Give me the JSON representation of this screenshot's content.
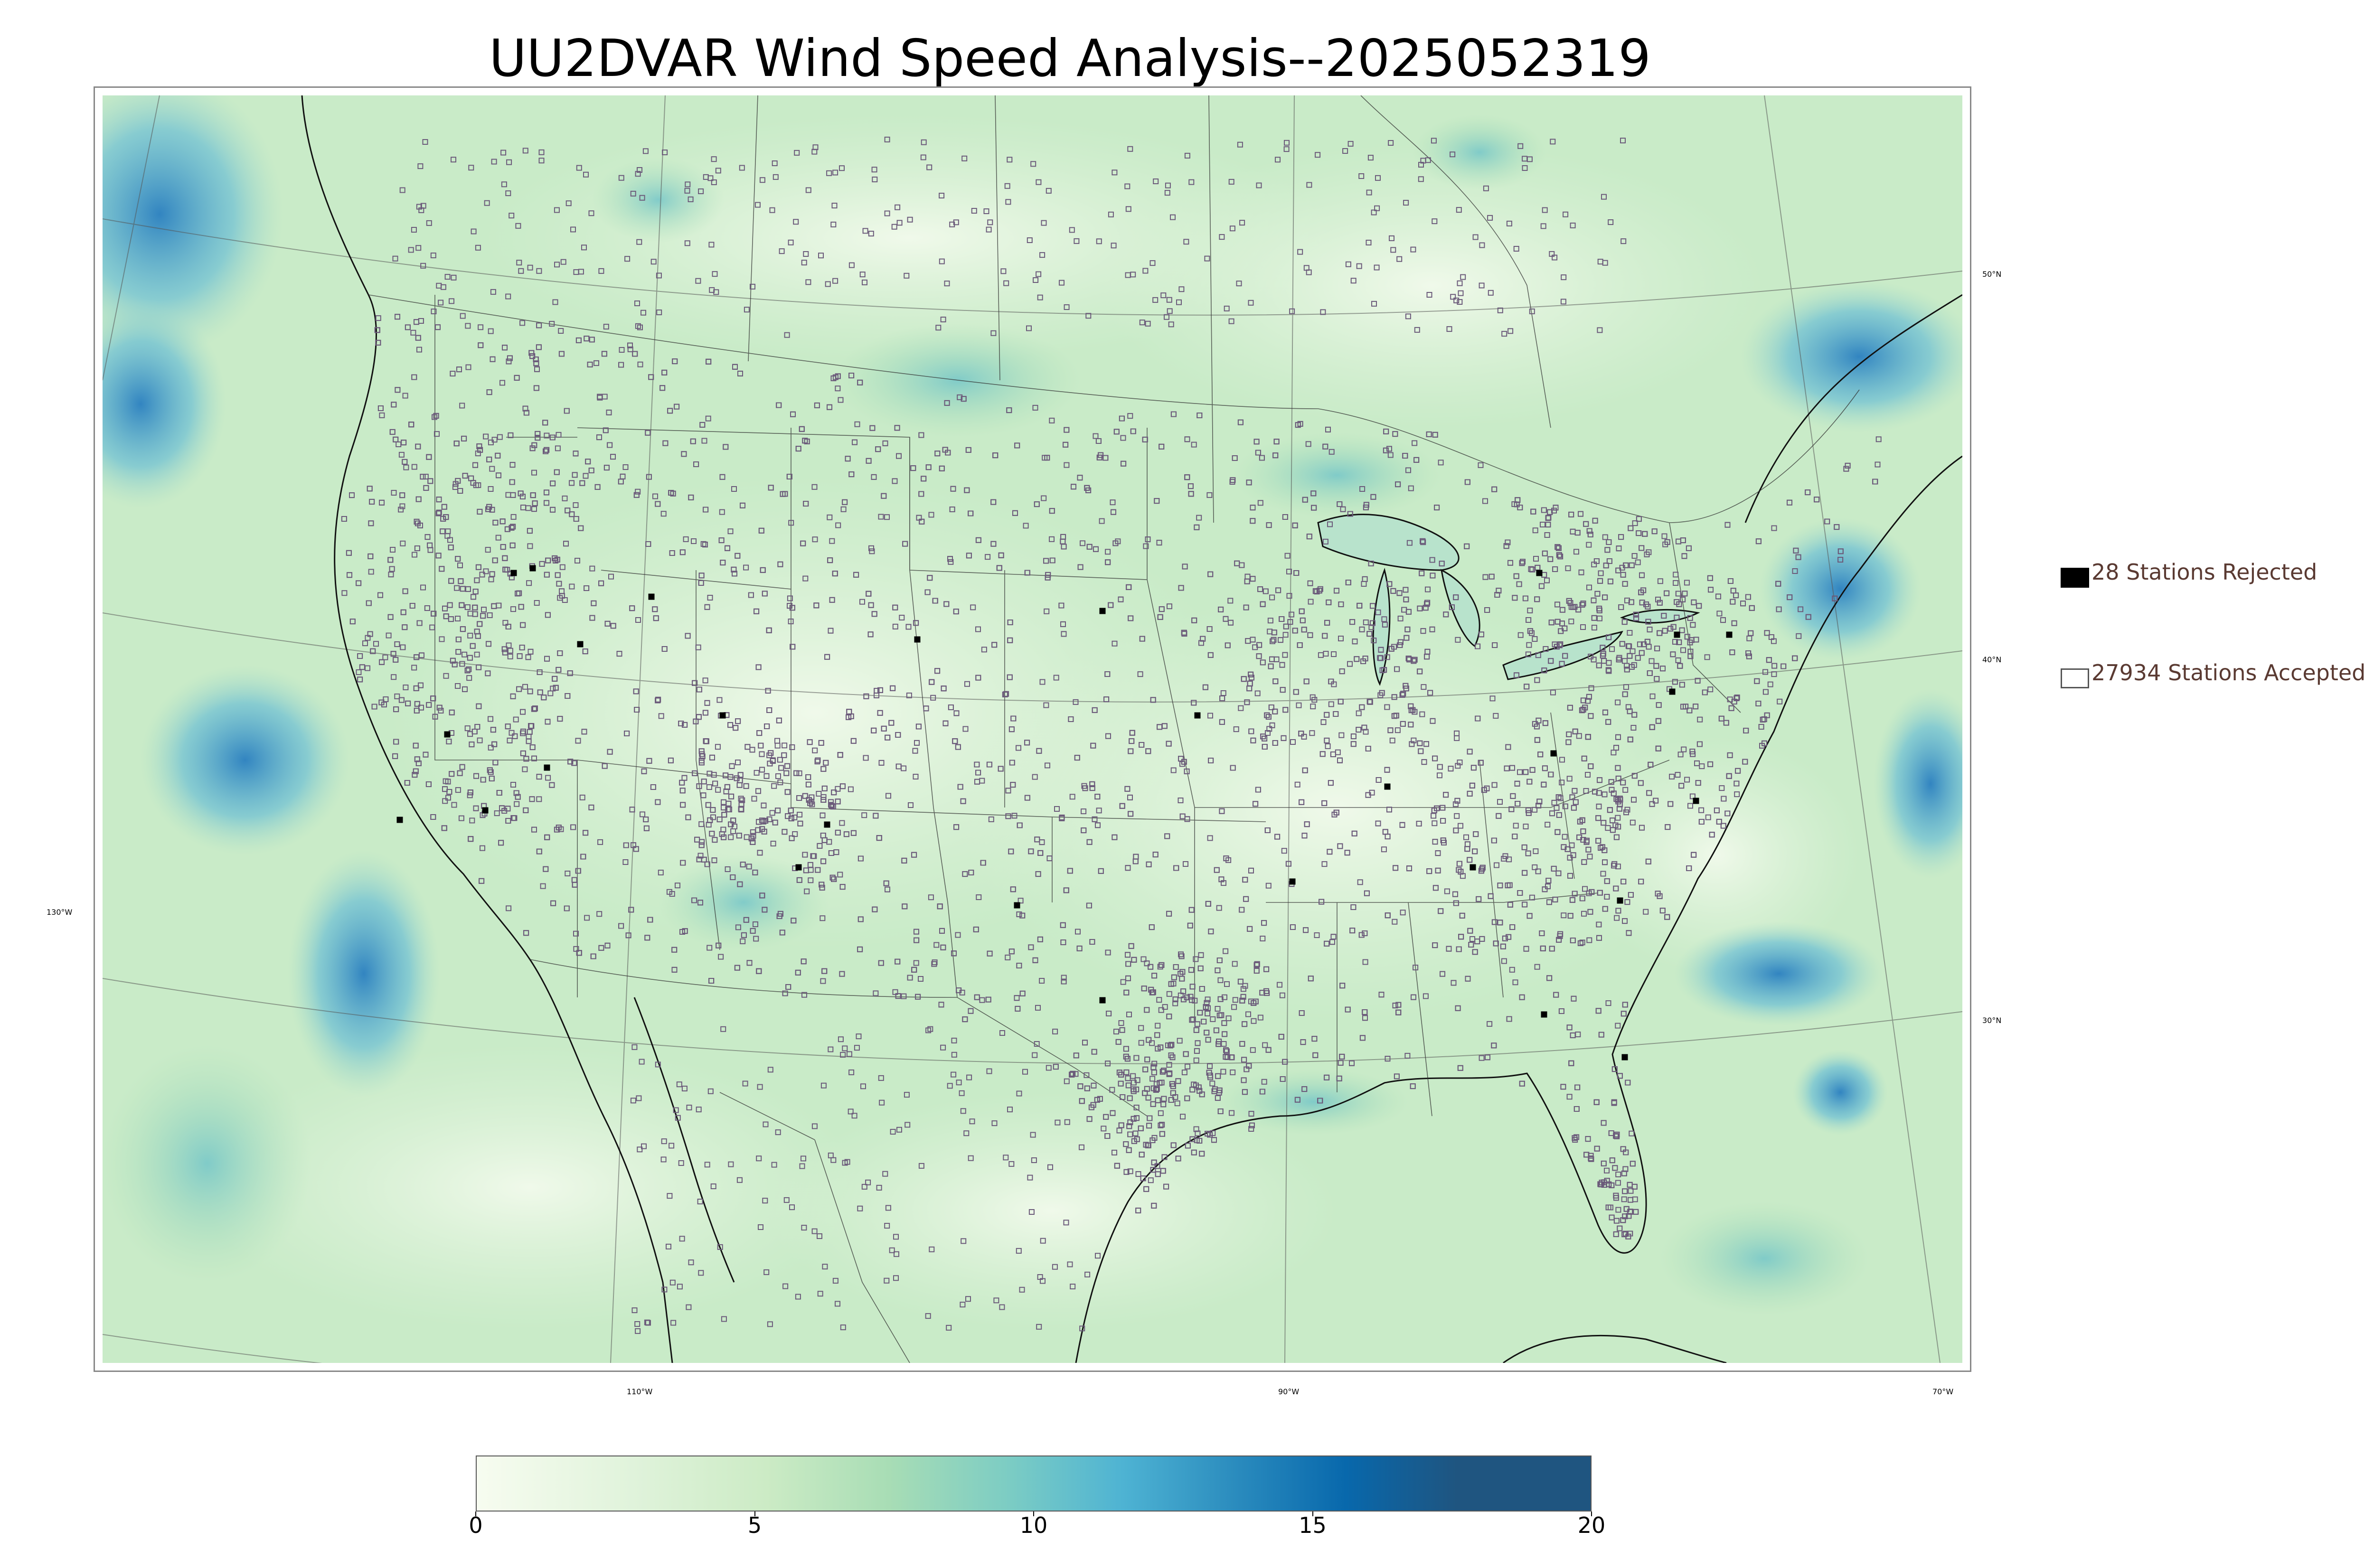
{
  "title": "UU2DVAR Wind Speed Analysis--2025052319",
  "legend": {
    "rejected": {
      "label": "28 Stations Rejected",
      "swatch_color": "#000000"
    },
    "accepted": {
      "label": "27934 Stations Accepted",
      "swatch_color": "#ffffff"
    }
  },
  "latitude_labels": [
    "50°N",
    "40°N",
    "130°W",
    "30°N"
  ],
  "longitude_labels": [
    "110°W",
    "90°W",
    "70°W"
  ],
  "colorbar": {
    "min": 0,
    "max": 20,
    "ticks": [
      "0",
      "5",
      "10",
      "15",
      "20"
    ],
    "colors": [
      "#f7fcf0",
      "#e0f3db",
      "#ccebc5",
      "#a8ddb5",
      "#7bccc4",
      "#4eb3d3",
      "#2b8cbe",
      "#0868ac",
      "#1f5580"
    ]
  },
  "map": {
    "background_color": "#cfeccd",
    "ocean_color": "#a8dcc4",
    "strong_wind_color": "#3a9bd0",
    "station_outline_color": "#6b5a7a"
  }
}
